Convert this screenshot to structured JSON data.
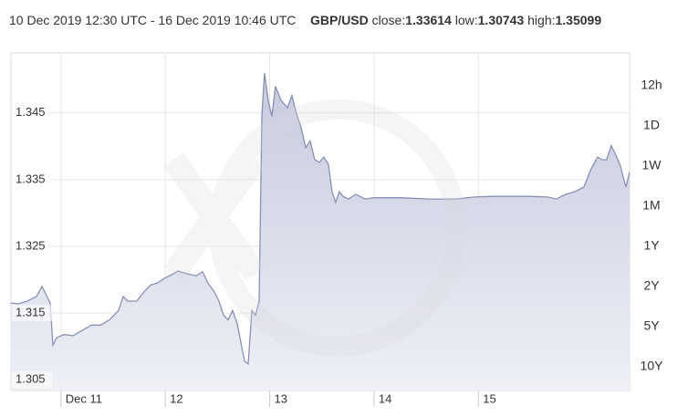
{
  "chart_data": {
    "type": "area",
    "title": "10 Dec 2019 12:30 UTC - 16 Dec 2019 10:46 UTC",
    "pair": "GBP/USD",
    "stats": [
      {
        "label": "close:",
        "value": 1.33614
      },
      {
        "label": "low:",
        "value": 1.30743
      },
      {
        "label": "high:",
        "value": 1.35099
      }
    ],
    "range_buttons": [
      "12h",
      "1D",
      "1W",
      "1M",
      "1Y",
      "2Y",
      "5Y",
      "10Y"
    ],
    "color": "#8a90b5",
    "x": [
      10.521,
      10.591,
      10.678,
      10.766,
      10.818,
      10.853,
      10.897,
      10.923,
      10.958,
      11.028,
      11.115,
      11.203,
      11.29,
      11.378,
      11.465,
      11.552,
      11.596,
      11.64,
      11.727,
      11.797,
      11.858,
      11.92,
      11.99,
      12.077,
      12.121,
      12.208,
      12.295,
      12.357,
      12.409,
      12.47,
      12.514,
      12.558,
      12.601,
      12.645,
      12.689,
      12.733,
      12.759,
      12.794,
      12.829,
      12.864,
      12.899,
      12.925,
      12.951,
      12.986,
      13.021,
      13.056,
      13.108,
      13.17,
      13.213,
      13.257,
      13.301,
      13.345,
      13.388,
      13.432,
      13.476,
      13.519,
      13.563,
      13.598,
      13.633,
      13.668,
      13.703,
      13.755,
      13.825,
      13.913,
      14.0,
      14.087,
      14.262,
      14.524,
      14.787,
      14.962,
      15.136,
      15.311,
      15.486,
      15.661,
      15.748,
      15.836,
      15.923,
      16.011,
      16.08,
      16.142,
      16.185,
      16.229,
      16.273,
      16.316,
      16.36,
      16.413,
      16.448
    ],
    "values": [
      1.3165,
      1.3164,
      1.3168,
      1.3175,
      1.319,
      1.3179,
      1.3165,
      1.3102,
      1.3113,
      1.3118,
      1.3116,
      1.3124,
      1.3132,
      1.3132,
      1.314,
      1.3154,
      1.3175,
      1.3168,
      1.3168,
      1.3182,
      1.3192,
      1.3195,
      1.3202,
      1.3209,
      1.3213,
      1.3209,
      1.3206,
      1.3212,
      1.3195,
      1.3182,
      1.3168,
      1.3147,
      1.314,
      1.3154,
      1.3134,
      1.3099,
      1.3078,
      1.3074,
      1.3154,
      1.3147,
      1.3168,
      1.3447,
      1.351,
      1.3469,
      1.3445,
      1.349,
      1.3469,
      1.3458,
      1.3476,
      1.3449,
      1.3428,
      1.3398,
      1.3408,
      1.338,
      1.3376,
      1.3384,
      1.3373,
      1.3332,
      1.3316,
      1.3332,
      1.3325,
      1.3321,
      1.3328,
      1.3321,
      1.3323,
      1.3323,
      1.3323,
      1.3321,
      1.3321,
      1.3324,
      1.3325,
      1.3325,
      1.3325,
      1.3324,
      1.3321,
      1.3328,
      1.3332,
      1.3339,
      1.3366,
      1.3384,
      1.338,
      1.338,
      1.3401,
      1.3387,
      1.3371,
      1.3339,
      1.3361
    ],
    "xlim": [
      10.521,
      16.449
    ],
    "xticks": [
      {
        "value": 11,
        "label": "Dec 11"
      },
      12,
      13,
      14,
      15
    ],
    "ylim": [
      1.3034,
      1.354
    ],
    "yticks": [
      1.305,
      1.315,
      1.325,
      1.335,
      1.345
    ],
    "grid": true
  }
}
